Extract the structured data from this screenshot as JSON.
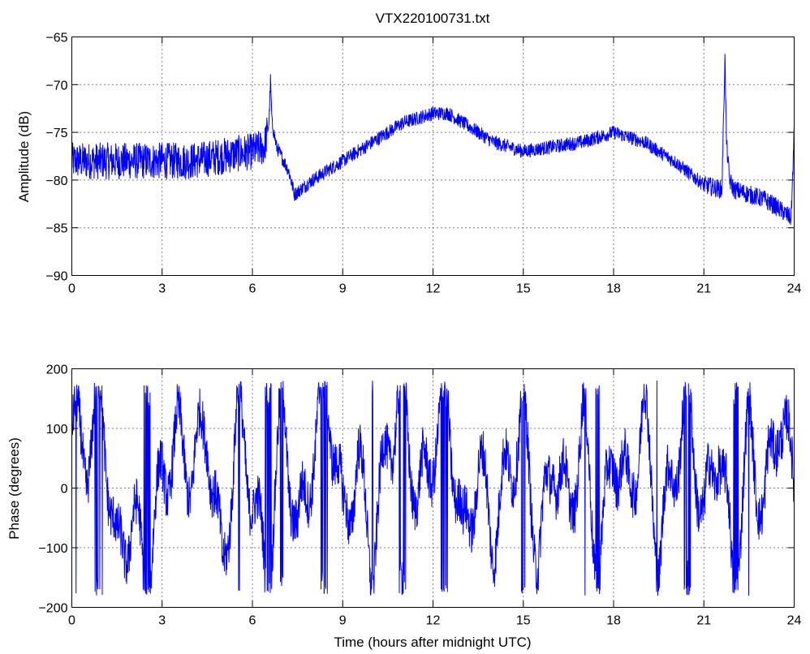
{
  "figure": {
    "title": "VTX220100731.txt"
  },
  "chart_data": [
    {
      "type": "line",
      "ylabel": "Amplitude (dB)",
      "xlabel": "",
      "xlim": [
        0,
        24
      ],
      "ylim": [
        -90,
        -65
      ],
      "x_ticks": [
        0,
        3,
        6,
        9,
        12,
        15,
        18,
        21,
        24
      ],
      "y_ticks": [
        -90,
        -85,
        -80,
        -75,
        -70,
        -65
      ],
      "x_tick_labels": [
        "0",
        "3",
        "6",
        "9",
        "12",
        "15",
        "18",
        "21",
        "24"
      ],
      "y_tick_labels": [
        "−90",
        "−85",
        "−80",
        "−75",
        "−70",
        "−65"
      ],
      "grid": true,
      "series_color": "#0000ff",
      "series": [
        {
          "x": [
            0,
            1,
            2,
            3,
            4,
            5,
            6,
            6.4,
            6.55,
            6.6,
            6.65,
            6.8,
            7.2,
            7.4,
            8,
            9,
            10,
            11,
            12,
            12.5,
            13,
            14,
            15,
            16,
            17,
            18,
            19,
            20,
            21,
            21.6,
            21.7,
            21.75,
            21.85,
            22,
            23,
            23.5,
            23.9,
            24
          ],
          "y": [
            -78,
            -78,
            -78,
            -78,
            -78,
            -77.5,
            -77,
            -76.5,
            -74,
            -69.5,
            -74,
            -76.5,
            -79,
            -81.5,
            -80,
            -78,
            -76,
            -74,
            -73,
            -73,
            -74,
            -76,
            -77,
            -76.5,
            -76,
            -75,
            -76,
            -78,
            -80.5,
            -81,
            -67,
            -76,
            -80,
            -81,
            -82,
            -83,
            -84,
            -75
          ]
        }
      ],
      "noise_amplitude_db": [
        3.2,
        2.0,
        1.2,
        1.6
      ]
    },
    {
      "type": "line",
      "ylabel": "Phase (degrees)",
      "xlabel": "Time (hours after midnight UTC)",
      "xlim": [
        0,
        24
      ],
      "ylim": [
        -200,
        200
      ],
      "x_ticks": [
        0,
        3,
        6,
        9,
        12,
        15,
        18,
        21,
        24
      ],
      "y_ticks": [
        -200,
        -100,
        0,
        100,
        200
      ],
      "x_tick_labels": [
        "0",
        "3",
        "6",
        "9",
        "12",
        "15",
        "18",
        "21",
        "24"
      ],
      "y_tick_labels": [
        "−200",
        "−100",
        "0",
        "100",
        "200"
      ],
      "grid": true,
      "series_color": "#0000ff",
      "wrap_range": [
        -180,
        180
      ],
      "series": [
        {
          "x": [
            0,
            0.5,
            1,
            1.5,
            2,
            2.5,
            3,
            3.5,
            4,
            4.5,
            5,
            5.5,
            6,
            6.5,
            7,
            7.5,
            8,
            8.5,
            9,
            9.5,
            10,
            10.5,
            11,
            11.5,
            12,
            12.5,
            13,
            13.5,
            14,
            14.5,
            15,
            15.5,
            16,
            16.5,
            17,
            17.5,
            18,
            18.5,
            19,
            19.5,
            20,
            20.5,
            21,
            21.5,
            22,
            22.5,
            23,
            23.5,
            24
          ],
          "y": [
            100,
            60,
            150,
            -130,
            -40,
            -160,
            20,
            80,
            30,
            110,
            -150,
            120,
            0,
            -170,
            150,
            -90,
            60,
            170,
            -60,
            40,
            -120,
            80,
            160,
            -30,
            70,
            140,
            -100,
            40,
            -80,
            30,
            120,
            -120,
            60,
            -40,
            110,
            -150,
            80,
            -20,
            130,
            -110,
            40,
            150,
            -60,
            90,
            -170,
            100,
            -40,
            140,
            0
          ]
        }
      ],
      "noise_amplitude_deg": [
        40,
        25
      ]
    }
  ]
}
